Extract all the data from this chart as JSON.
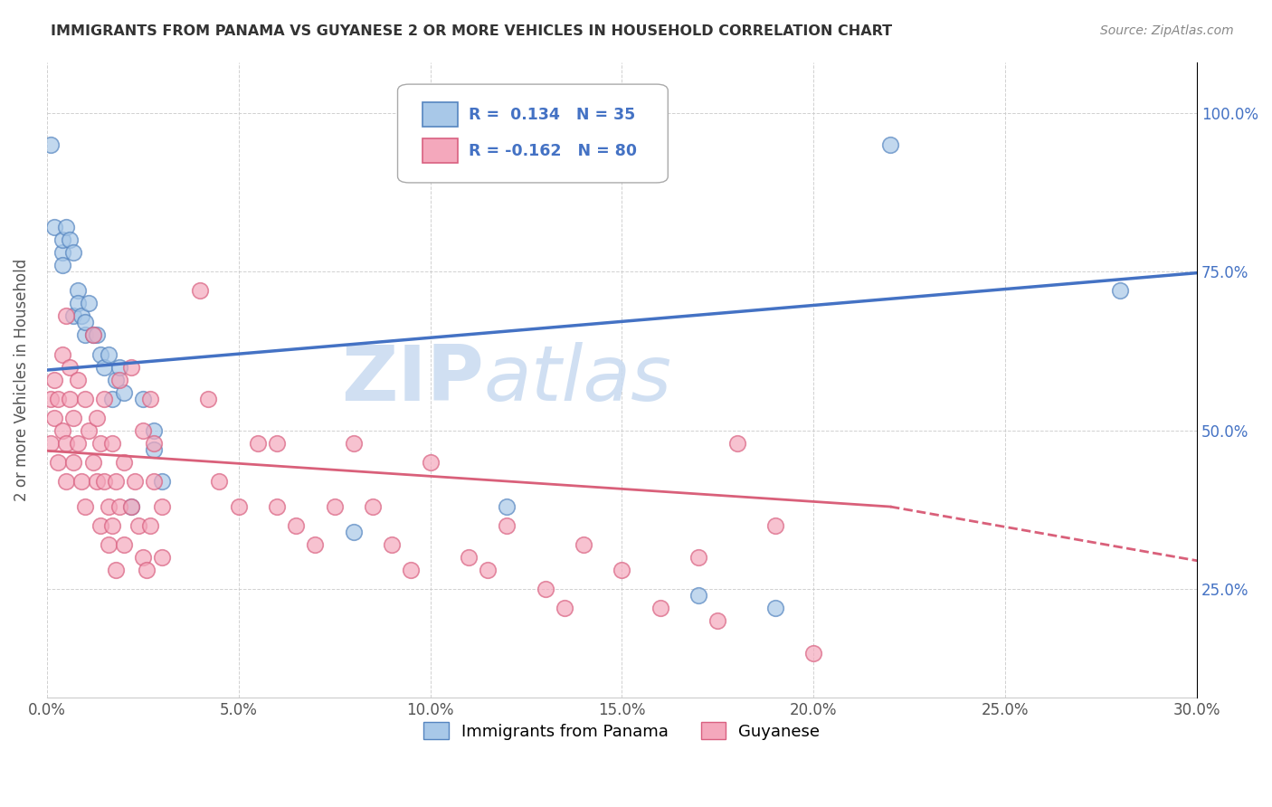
{
  "title": "IMMIGRANTS FROM PANAMA VS GUYANESE 2 OR MORE VEHICLES IN HOUSEHOLD CORRELATION CHART",
  "source": "Source: ZipAtlas.com",
  "ylabel": "2 or more Vehicles in Household",
  "xlim": [
    0.0,
    0.3
  ],
  "ylim": [
    0.08,
    1.08
  ],
  "xticks": [
    0.0,
    0.05,
    0.1,
    0.15,
    0.2,
    0.25,
    0.3
  ],
  "xtick_labels": [
    "0.0%",
    "5.0%",
    "10.0%",
    "15.0%",
    "20.0%",
    "25.0%",
    "30.0%"
  ],
  "yticks": [
    0.25,
    0.5,
    0.75,
    1.0
  ],
  "ytick_labels": [
    "25.0%",
    "50.0%",
    "75.0%",
    "100.0%"
  ],
  "blue_r": "0.134",
  "blue_n": "35",
  "pink_r": "-0.162",
  "pink_n": "80",
  "blue_color": "#a8c8e8",
  "pink_color": "#f4a8bc",
  "blue_edge_color": "#5585c0",
  "pink_edge_color": "#d96080",
  "blue_line_color": "#4472c4",
  "pink_line_color": "#d9607a",
  "legend_label_blue": "Immigrants from Panama",
  "legend_label_pink": "Guyanese",
  "blue_trend": [
    0.0,
    0.595,
    0.3,
    0.748
  ],
  "pink_trend_solid": [
    0.0,
    0.468,
    0.22,
    0.38
  ],
  "pink_trend_dash": [
    0.22,
    0.38,
    0.3,
    0.295
  ],
  "blue_points": [
    [
      0.001,
      0.95
    ],
    [
      0.002,
      0.82
    ],
    [
      0.004,
      0.78
    ],
    [
      0.004,
      0.8
    ],
    [
      0.004,
      0.76
    ],
    [
      0.005,
      0.82
    ],
    [
      0.006,
      0.8
    ],
    [
      0.007,
      0.78
    ],
    [
      0.007,
      0.68
    ],
    [
      0.008,
      0.72
    ],
    [
      0.008,
      0.7
    ],
    [
      0.009,
      0.68
    ],
    [
      0.01,
      0.65
    ],
    [
      0.01,
      0.67
    ],
    [
      0.011,
      0.7
    ],
    [
      0.012,
      0.65
    ],
    [
      0.013,
      0.65
    ],
    [
      0.014,
      0.62
    ],
    [
      0.015,
      0.6
    ],
    [
      0.016,
      0.62
    ],
    [
      0.017,
      0.55
    ],
    [
      0.018,
      0.58
    ],
    [
      0.019,
      0.6
    ],
    [
      0.02,
      0.56
    ],
    [
      0.022,
      0.38
    ],
    [
      0.025,
      0.55
    ],
    [
      0.028,
      0.47
    ],
    [
      0.028,
      0.5
    ],
    [
      0.03,
      0.42
    ],
    [
      0.08,
      0.34
    ],
    [
      0.12,
      0.38
    ],
    [
      0.17,
      0.24
    ],
    [
      0.19,
      0.22
    ],
    [
      0.22,
      0.95
    ],
    [
      0.28,
      0.72
    ]
  ],
  "pink_points": [
    [
      0.001,
      0.48
    ],
    [
      0.001,
      0.55
    ],
    [
      0.002,
      0.52
    ],
    [
      0.002,
      0.58
    ],
    [
      0.003,
      0.55
    ],
    [
      0.003,
      0.45
    ],
    [
      0.004,
      0.62
    ],
    [
      0.004,
      0.5
    ],
    [
      0.005,
      0.68
    ],
    [
      0.005,
      0.48
    ],
    [
      0.005,
      0.42
    ],
    [
      0.006,
      0.6
    ],
    [
      0.006,
      0.55
    ],
    [
      0.007,
      0.52
    ],
    [
      0.007,
      0.45
    ],
    [
      0.008,
      0.58
    ],
    [
      0.008,
      0.48
    ],
    [
      0.009,
      0.42
    ],
    [
      0.01,
      0.55
    ],
    [
      0.01,
      0.38
    ],
    [
      0.011,
      0.5
    ],
    [
      0.012,
      0.65
    ],
    [
      0.012,
      0.45
    ],
    [
      0.013,
      0.52
    ],
    [
      0.013,
      0.42
    ],
    [
      0.014,
      0.48
    ],
    [
      0.014,
      0.35
    ],
    [
      0.015,
      0.55
    ],
    [
      0.015,
      0.42
    ],
    [
      0.016,
      0.38
    ],
    [
      0.016,
      0.32
    ],
    [
      0.017,
      0.48
    ],
    [
      0.017,
      0.35
    ],
    [
      0.018,
      0.42
    ],
    [
      0.018,
      0.28
    ],
    [
      0.019,
      0.58
    ],
    [
      0.019,
      0.38
    ],
    [
      0.02,
      0.45
    ],
    [
      0.02,
      0.32
    ],
    [
      0.022,
      0.6
    ],
    [
      0.022,
      0.38
    ],
    [
      0.023,
      0.42
    ],
    [
      0.024,
      0.35
    ],
    [
      0.025,
      0.5
    ],
    [
      0.025,
      0.3
    ],
    [
      0.026,
      0.28
    ],
    [
      0.027,
      0.55
    ],
    [
      0.027,
      0.35
    ],
    [
      0.028,
      0.42
    ],
    [
      0.028,
      0.48
    ],
    [
      0.03,
      0.38
    ],
    [
      0.03,
      0.3
    ],
    [
      0.04,
      0.72
    ],
    [
      0.042,
      0.55
    ],
    [
      0.045,
      0.42
    ],
    [
      0.05,
      0.38
    ],
    [
      0.055,
      0.48
    ],
    [
      0.06,
      0.48
    ],
    [
      0.06,
      0.38
    ],
    [
      0.065,
      0.35
    ],
    [
      0.07,
      0.32
    ],
    [
      0.075,
      0.38
    ],
    [
      0.08,
      0.48
    ],
    [
      0.085,
      0.38
    ],
    [
      0.09,
      0.32
    ],
    [
      0.095,
      0.28
    ],
    [
      0.1,
      0.45
    ],
    [
      0.11,
      0.3
    ],
    [
      0.115,
      0.28
    ],
    [
      0.12,
      0.35
    ],
    [
      0.13,
      0.25
    ],
    [
      0.135,
      0.22
    ],
    [
      0.14,
      0.32
    ],
    [
      0.15,
      0.28
    ],
    [
      0.16,
      0.22
    ],
    [
      0.17,
      0.3
    ],
    [
      0.175,
      0.2
    ],
    [
      0.18,
      0.48
    ],
    [
      0.19,
      0.35
    ],
    [
      0.2,
      0.15
    ]
  ]
}
